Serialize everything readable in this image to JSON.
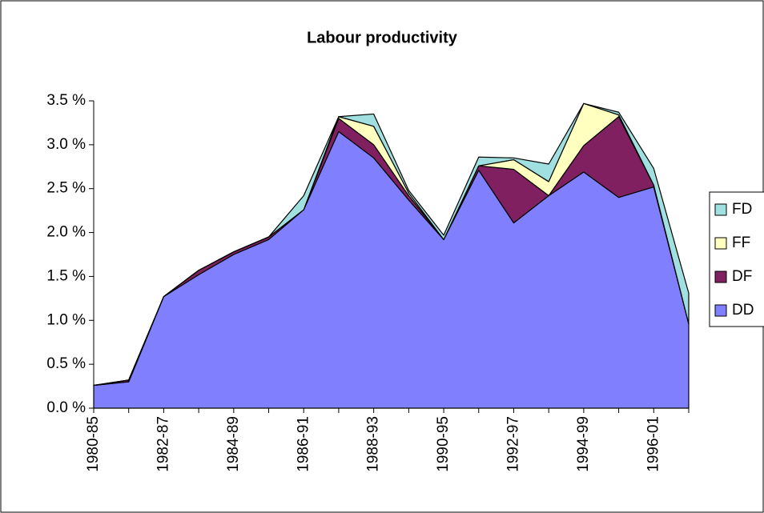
{
  "chart_data": {
    "type": "stacked_area",
    "title": "Labour productivity",
    "categories": [
      "1980-85",
      null,
      "1982-87",
      null,
      "1984-89",
      null,
      "1986-91",
      null,
      "1988-93",
      null,
      "1990-95",
      null,
      "1992-97",
      null,
      "1994-99",
      null,
      "1996-01",
      null
    ],
    "series": [
      {
        "name": "DD",
        "color": "#8080ff",
        "values": [
          0.26,
          0.3,
          1.27,
          1.52,
          1.75,
          1.92,
          2.26,
          3.15,
          2.85,
          2.37,
          1.92,
          2.71,
          2.11,
          2.42,
          2.69,
          2.4,
          2.52,
          0.96
        ]
      },
      {
        "name": "DF",
        "color": "#802060",
        "values": [
          0,
          0.02,
          0,
          0.05,
          0.03,
          0.03,
          0,
          0.15,
          0.15,
          0.05,
          0,
          0.05,
          0.61,
          0,
          0.3,
          0.92,
          0.02,
          0
        ]
      },
      {
        "name": "FF",
        "color": "#ffffc0",
        "values": [
          0,
          0,
          0,
          0,
          0,
          0,
          0,
          0.02,
          0.21,
          0.03,
          0,
          0,
          0.11,
          0.16,
          0.48,
          0.02,
          0,
          0
        ]
      },
      {
        "name": "FD",
        "color": "#a0e0e0",
        "values": [
          0,
          0,
          0,
          0,
          0,
          0,
          0.16,
          0,
          0.14,
          0.03,
          0.05,
          0.1,
          0.02,
          0.2,
          0,
          0.03,
          0.19,
          0.35
        ]
      }
    ],
    "ylim": [
      0,
      3.5
    ],
    "yticks": [
      {
        "value": 0,
        "label": "0.0 %"
      },
      {
        "value": 0.5,
        "label": "0.5 %"
      },
      {
        "value": 1,
        "label": "1.0 %"
      },
      {
        "value": 1.5,
        "label": "1.5 %"
      },
      {
        "value": 2,
        "label": "2.0 %"
      },
      {
        "value": 2.5,
        "label": "2.5 %"
      },
      {
        "value": 3,
        "label": "3.0 %"
      },
      {
        "value": 3.5,
        "label": "3.5 %"
      }
    ],
    "grid": false
  }
}
